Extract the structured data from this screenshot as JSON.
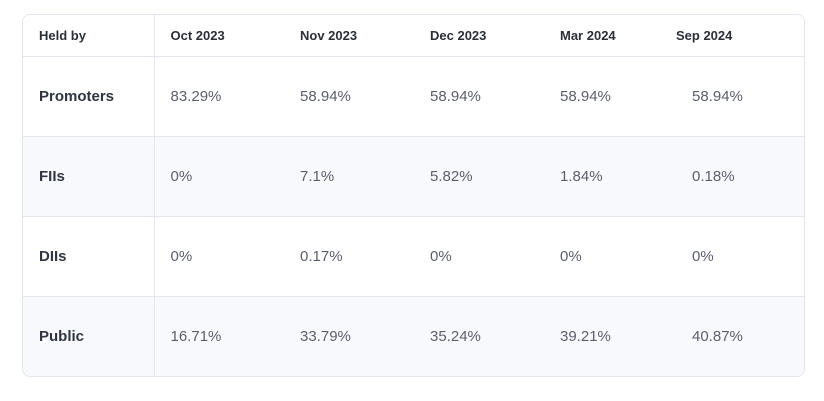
{
  "table": {
    "header_label": "Held by",
    "columns": [
      "Oct 2023",
      "Nov 2023",
      "Dec 2023",
      "Mar 2024",
      "Sep 2024"
    ],
    "rows": [
      {
        "label": "Promoters",
        "values": [
          "83.29%",
          "58.94%",
          "58.94%",
          "58.94%",
          "58.94%"
        ]
      },
      {
        "label": "FIIs",
        "values": [
          "0%",
          "7.1%",
          "5.82%",
          "1.84%",
          "0.18%"
        ]
      },
      {
        "label": "DIIs",
        "values": [
          "0%",
          "0.17%",
          "0%",
          "0%",
          "0%"
        ]
      },
      {
        "label": "Public",
        "values": [
          "16.71%",
          "33.79%",
          "35.24%",
          "39.21%",
          "40.87%"
        ]
      }
    ]
  },
  "colors": {
    "border": "#e3e6ec",
    "row_shade": "#f8f9fd",
    "header_text": "#2b2f38",
    "value_text": "#5a5f6b"
  }
}
